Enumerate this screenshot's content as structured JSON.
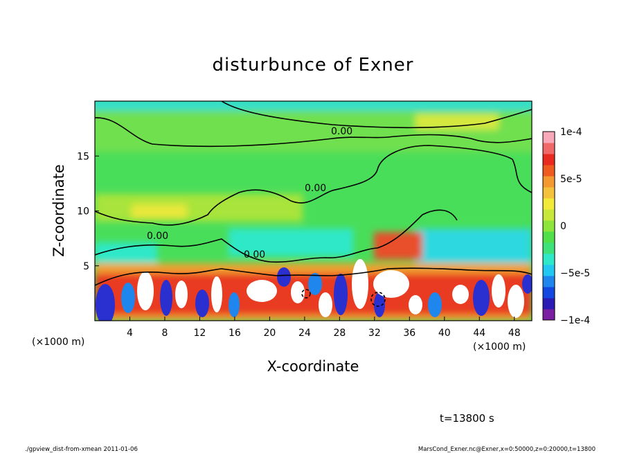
{
  "chart_data": {
    "type": "heatmap",
    "title": "disturbunce of Exner",
    "xlabel": "X-coordinate",
    "ylabel": "Z-coordinate",
    "x_unit": "(×1000 m)",
    "y_unit": "(×1000 m)",
    "xlim": [
      0,
      50
    ],
    "ylim": [
      0,
      20
    ],
    "x_ticks": [
      "4",
      "8",
      "12",
      "16",
      "20",
      "24",
      "28",
      "32",
      "36",
      "40",
      "44",
      "48"
    ],
    "x_tick_values": [
      4,
      8,
      12,
      16,
      20,
      24,
      28,
      32,
      36,
      40,
      44,
      48
    ],
    "y_ticks": [
      "5",
      "10",
      "15"
    ],
    "y_tick_values": [
      5,
      10,
      15
    ],
    "colorbar": {
      "labels": [
        "1e-4",
        "5e-5",
        "0",
        "−5e-5",
        "−1e-4"
      ],
      "label_values": [
        0.0001,
        5e-05,
        0,
        -5e-05,
        -0.0001
      ],
      "range": [
        -0.0001,
        0.0001
      ],
      "colors": [
        "#7b1fa2",
        "#2b1bb5",
        "#1248e0",
        "#1f86ee",
        "#22c8f0",
        "#2fe8c8",
        "#3ee27a",
        "#4fe04a",
        "#8de43a",
        "#c7e83a",
        "#f2ea3a",
        "#f4c23a",
        "#f29a30",
        "#ee5a20",
        "#e82a20",
        "#f06868",
        "#f8a8b8"
      ]
    },
    "contour_labels": [
      "0.00",
      "0.00",
      "0.00",
      "0.00"
    ],
    "grid": false
  },
  "annotations": {
    "time": "t=13800 s",
    "footer_left": "./gpview_dist-from-xmean  2011-01-06",
    "footer_right": "MarsCond_Exner.nc@Exner,x=0:50000,z=0:20000,t=13800"
  }
}
